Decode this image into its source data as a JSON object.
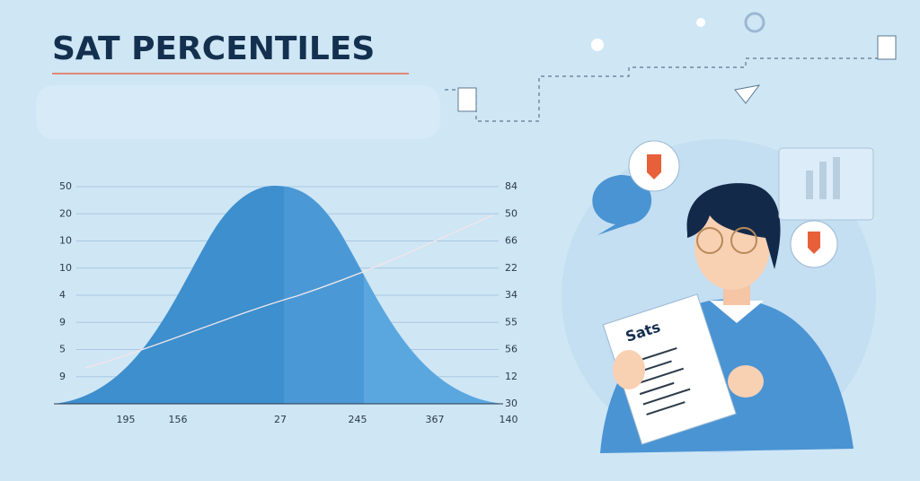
{
  "title": "SAT PERCENTILES",
  "chart": {
    "left_labels": [
      50,
      20,
      10,
      10,
      4,
      9,
      5,
      9
    ],
    "right_labels": [
      84,
      50,
      66,
      22,
      34,
      55,
      56,
      12,
      30
    ],
    "bottom_labels": [
      195,
      156,
      27,
      245,
      367,
      140
    ]
  },
  "illustration": {
    "paper_title": "Sats"
  }
}
